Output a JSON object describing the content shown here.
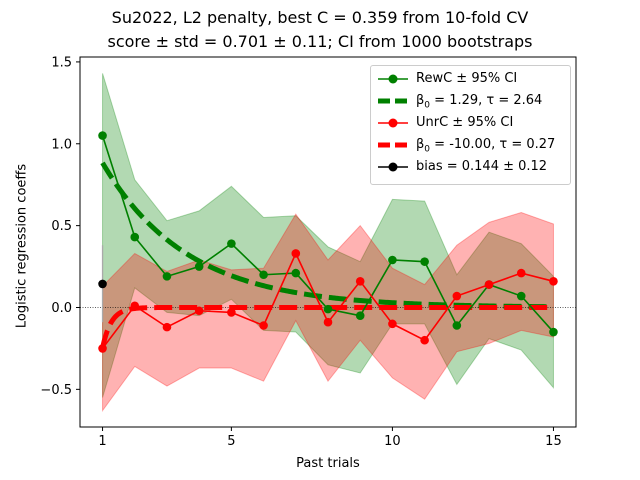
{
  "chart_data": {
    "type": "line",
    "title_line1": "Su2022, L2 penalty, best C = 0.359 from 10-fold CV",
    "title_line2": "score ± std = 0.701 ± 0.11; CI from 1000 bootstraps",
    "xlabel": "Past trials",
    "ylabel": "Logistic regression coeffs",
    "xlim": [
      0.3,
      15.7
    ],
    "ylim": [
      -0.73,
      1.53
    ],
    "xticks": [
      1,
      5,
      10,
      15
    ],
    "yticks": [
      -0.5,
      0.0,
      0.5,
      1.0,
      1.5
    ],
    "ytick_labels": [
      "−0.5",
      "0.0",
      "0.5",
      "1.0",
      "1.5"
    ],
    "x": [
      1,
      2,
      3,
      4,
      5,
      6,
      7,
      8,
      9,
      10,
      11,
      12,
      13,
      14,
      15
    ],
    "legend_position": "upper right",
    "zero_line": true,
    "series": [
      {
        "name": "RewC ± 95% CI",
        "color": "#008000",
        "values": [
          1.05,
          0.43,
          0.19,
          0.25,
          0.39,
          0.2,
          0.21,
          -0.01,
          -0.05,
          0.29,
          0.28,
          -0.11,
          0.14,
          0.07,
          -0.15
        ],
        "ci_low": [
          -0.55,
          0.12,
          -0.03,
          -0.05,
          0.05,
          -0.14,
          -0.15,
          -0.35,
          -0.4,
          -0.1,
          -0.1,
          -0.47,
          -0.19,
          -0.26,
          -0.49
        ],
        "ci_high": [
          1.43,
          0.78,
          0.53,
          0.59,
          0.74,
          0.55,
          0.56,
          0.37,
          0.28,
          0.66,
          0.65,
          0.2,
          0.46,
          0.39,
          0.19
        ]
      },
      {
        "name": "UnrC ± 95% CI",
        "color": "#ff0000",
        "values": [
          -0.25,
          0.01,
          -0.12,
          -0.02,
          -0.03,
          -0.11,
          0.33,
          -0.09,
          0.16,
          -0.1,
          -0.2,
          0.07,
          0.14,
          0.21,
          0.16
        ],
        "ci_low": [
          -0.63,
          -0.36,
          -0.48,
          -0.37,
          -0.37,
          -0.45,
          -0.08,
          -0.45,
          -0.2,
          -0.43,
          -0.56,
          -0.27,
          -0.22,
          -0.14,
          -0.18
        ],
        "ci_high": [
          0.13,
          0.33,
          0.22,
          0.29,
          0.23,
          0.24,
          0.57,
          0.29,
          0.5,
          0.24,
          0.14,
          0.38,
          0.52,
          0.58,
          0.51
        ]
      }
    ],
    "fits": [
      {
        "name": "β0 = 1.29, τ = 2.64",
        "label_prefix": "β",
        "label_sub": "0",
        "label_rest": " = 1.29, τ = 2.64",
        "beta0": 1.29,
        "tau": 2.64,
        "color": "#008000"
      },
      {
        "name": "β0 = -10.00, τ = 0.27",
        "label_prefix": "β",
        "label_sub": "0",
        "label_rest": " = -10.00, τ = 0.27",
        "beta0": -10.0,
        "tau": 0.27,
        "color": "#ff0000"
      }
    ],
    "bias": {
      "name": "bias = 0.144 ± 0.12",
      "x": 1,
      "value": 0.144,
      "err_low": -0.09,
      "err_high": 0.38,
      "color": "#000000"
    }
  }
}
